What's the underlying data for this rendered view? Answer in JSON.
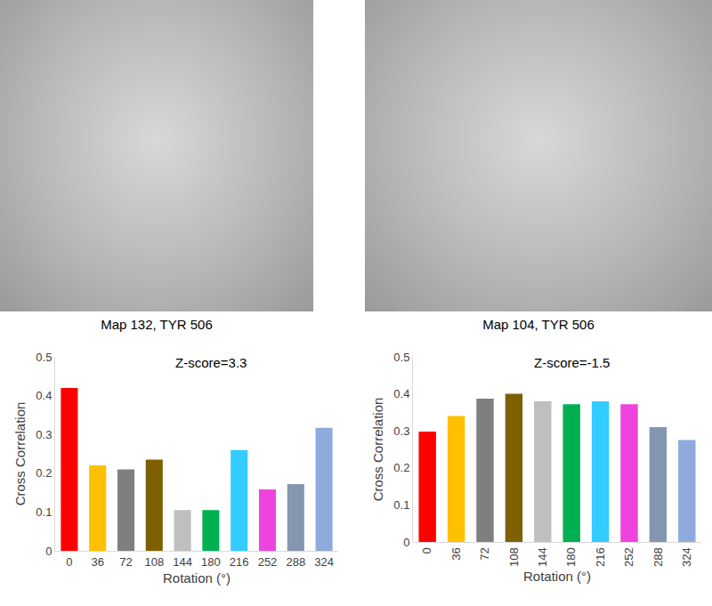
{
  "image_captions": [
    "Map 132, TYR 506",
    "Map 104, TYR 506"
  ],
  "chart_data": [
    {
      "type": "bar",
      "categories": [
        "0",
        "36",
        "72",
        "108",
        "144",
        "180",
        "216",
        "252",
        "288",
        "324"
      ],
      "values": [
        0.42,
        0.22,
        0.21,
        0.235,
        0.105,
        0.105,
        0.26,
        0.158,
        0.172,
        0.317
      ],
      "colors": [
        "#ff0000",
        "#ffc000",
        "#7f7f7f",
        "#7f6000",
        "#bfbfbf",
        "#00b050",
        "#33ccff",
        "#ee44dd",
        "#8496b0",
        "#8faadc"
      ],
      "x_label": "Rotation (°)",
      "y_label": "Cross Correlation",
      "ylim": [
        0,
        0.5
      ],
      "yticks": [
        0,
        0.1,
        0.2,
        0.3,
        0.4,
        0.5
      ],
      "annotations": [
        "Z-score=3.3"
      ],
      "grid": false
    },
    {
      "type": "bar",
      "categories": [
        "0",
        "36",
        "72",
        "108",
        "144",
        "180",
        "216",
        "252",
        "288",
        "324"
      ],
      "values": [
        0.298,
        0.34,
        0.387,
        0.4,
        0.38,
        0.372,
        0.38,
        0.372,
        0.31,
        0.275
      ],
      "colors": [
        "#ff0000",
        "#ffc000",
        "#7f7f7f",
        "#7f6000",
        "#bfbfbf",
        "#00b050",
        "#33ccff",
        "#ee44dd",
        "#8496b0",
        "#8faadc"
      ],
      "x_label": "Rotation (°)",
      "y_label": "Cross Correlation",
      "ylim": [
        0,
        0.5
      ],
      "yticks": [
        0,
        0.1,
        0.2,
        0.3,
        0.4,
        0.5
      ],
      "annotations": [
        "Z-score=-1.5"
      ],
      "grid": false
    }
  ]
}
